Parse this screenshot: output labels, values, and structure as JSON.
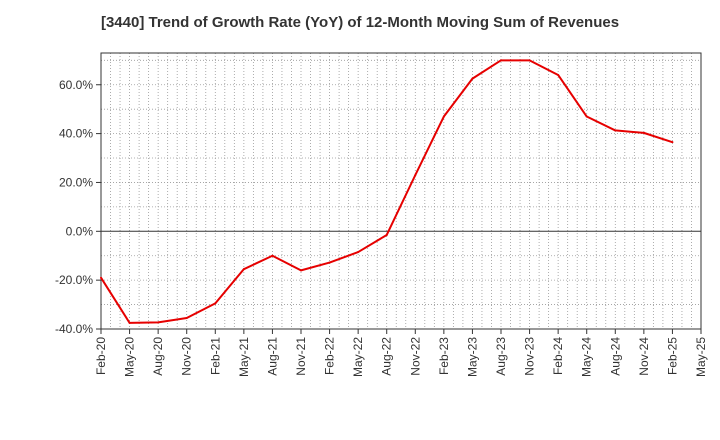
{
  "chart_data": {
    "type": "line",
    "title": "[3440]  Trend of Growth Rate (YoY) of 12-Month Moving Sum of Revenues",
    "xlabel": "",
    "ylabel": "",
    "ylim": [
      -40,
      73
    ],
    "y_ticks": [
      -40,
      -20,
      0,
      20,
      40,
      60
    ],
    "y_tick_labels": [
      "-40.0%",
      "-20.0%",
      "0.0%",
      "20.0%",
      "40.0%",
      "60.0%"
    ],
    "x_tick_labels": [
      "Feb-20",
      "May-20",
      "Aug-20",
      "Nov-20",
      "Feb-21",
      "May-21",
      "Aug-21",
      "Nov-21",
      "Feb-22",
      "May-22",
      "Aug-22",
      "Nov-22",
      "Feb-23",
      "May-23",
      "Aug-23",
      "Nov-23",
      "Feb-24",
      "May-24",
      "Aug-24",
      "Nov-24",
      "Feb-25",
      "May-25"
    ],
    "grid": true,
    "series": [
      {
        "color": "#e60000",
        "values": [
          -19,
          -37.5,
          -37.3,
          -35.5,
          -29.5,
          -15.5,
          -10,
          -16,
          -12.8,
          -8.5,
          -1.5,
          23,
          47,
          62.5,
          70,
          70,
          64,
          47,
          41.3,
          40.3,
          36.5
        ]
      }
    ]
  }
}
